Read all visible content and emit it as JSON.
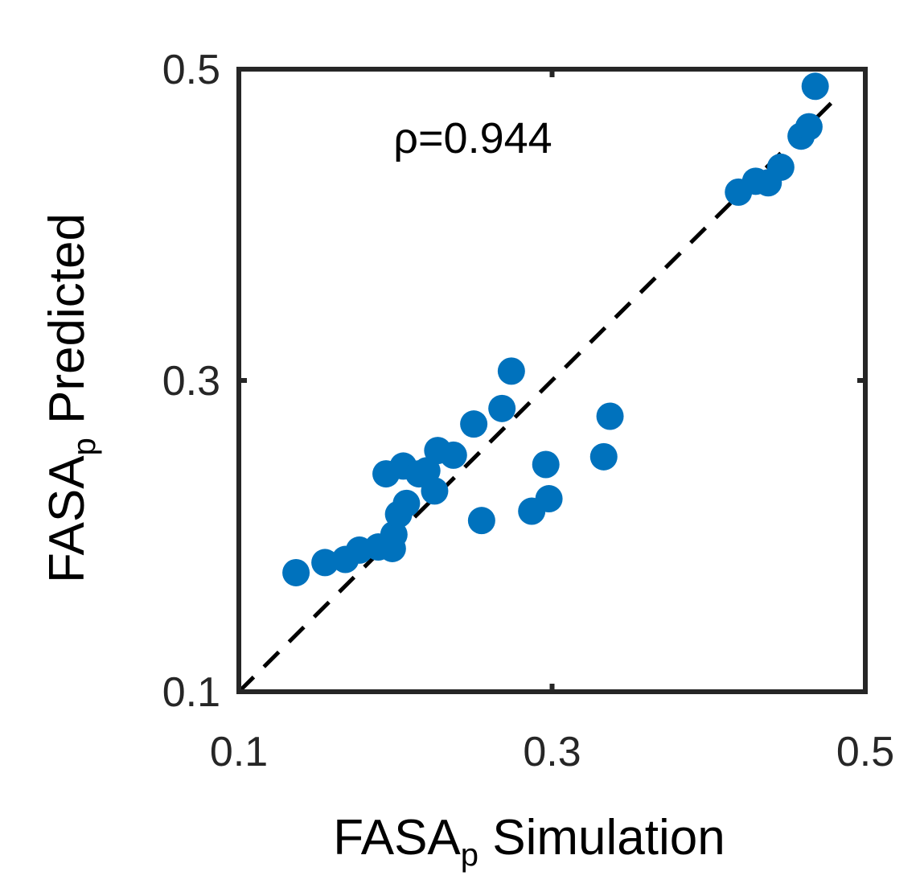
{
  "chart_data": {
    "type": "scatter",
    "annotation": "ρ=0.944",
    "x_label": {
      "main": "FASA",
      "sub": "p",
      "rest": " Simulation"
    },
    "y_label": {
      "main": "FASA",
      "sub": "p",
      "rest": " Predicted"
    },
    "xlim": [
      0.1,
      0.5
    ],
    "ylim": [
      0.1,
      0.5
    ],
    "xticks": [
      0.1,
      0.3,
      0.5
    ],
    "yticks": [
      0.1,
      0.3,
      0.5
    ],
    "color": "#0072bd",
    "diagonal": [
      0.1,
      0.484
    ],
    "x": [
      0.1365,
      0.155,
      0.168,
      0.177,
      0.189,
      0.198,
      0.199,
      0.202,
      0.207,
      0.194,
      0.205,
      0.215,
      0.225,
      0.22,
      0.227,
      0.237,
      0.25,
      0.268,
      0.274,
      0.255,
      0.287,
      0.298,
      0.296,
      0.333,
      0.337,
      0.419,
      0.43,
      0.438,
      0.446,
      0.459,
      0.464,
      0.468
    ],
    "y": [
      0.1765,
      0.183,
      0.185,
      0.191,
      0.193,
      0.192,
      0.201,
      0.214,
      0.221,
      0.24,
      0.245,
      0.24,
      0.229,
      0.242,
      0.255,
      0.252,
      0.272,
      0.282,
      0.306,
      0.21,
      0.216,
      0.224,
      0.246,
      0.251,
      0.277,
      0.421,
      0.428,
      0.427,
      0.437,
      0.457,
      0.463,
      0.489
    ]
  }
}
